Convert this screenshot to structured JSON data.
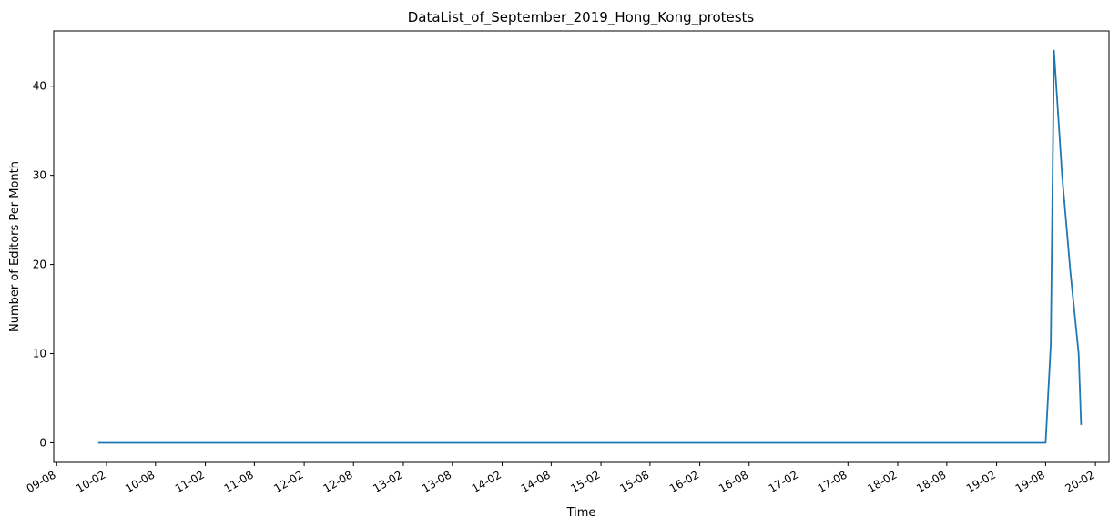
{
  "chart_data": {
    "type": "line",
    "title": "DataList_of_September_2019_Hong_Kong_protests",
    "xlabel": "Time",
    "ylabel": "Number of Editors Per Month",
    "ylim": [
      -2.2,
      46.2
    ],
    "xlim": [
      "2009-07-21",
      "2020-03-22"
    ],
    "grid": false,
    "legend": "none",
    "x_tick_labels": [
      "09-08",
      "10-02",
      "10-08",
      "11-02",
      "11-08",
      "12-02",
      "12-08",
      "13-02",
      "13-08",
      "14-02",
      "14-08",
      "15-02",
      "15-08",
      "16-02",
      "16-08",
      "17-02",
      "17-08",
      "18-02",
      "18-08",
      "19-02",
      "19-08",
      "20-02"
    ],
    "y_ticks": [
      0,
      10,
      20,
      30,
      40
    ],
    "series": [
      {
        "color": "#1f77b4",
        "x": [
          "2010-01-01",
          "2019-08-01",
          "2019-08-20",
          "2019-09-01",
          "2019-10-01",
          "2019-11-01",
          "2019-12-01",
          "2019-12-10"
        ],
        "y": [
          0,
          0,
          11,
          44,
          30,
          19,
          10,
          2
        ]
      }
    ]
  }
}
